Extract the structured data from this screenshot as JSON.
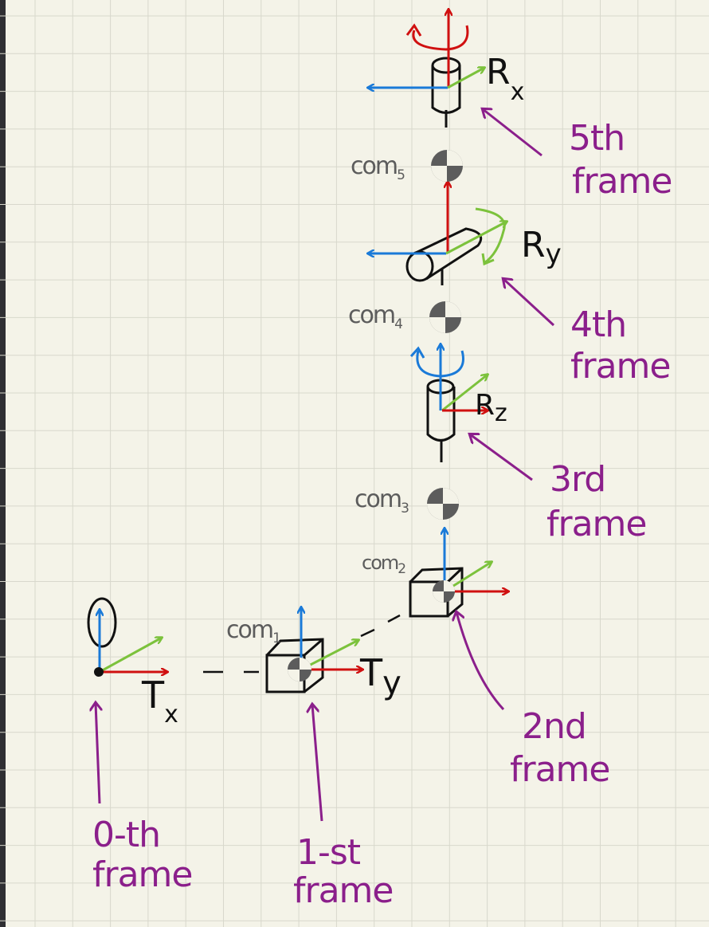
{
  "colors": {
    "background": "#f4f3e8",
    "grid": "#d8d8cc",
    "edge": "#2f2f33",
    "x_axis": "#d01010",
    "y_axis": "#7cc23c",
    "z_axis": "#1a7ad8",
    "label_purple": "#8b1f8b",
    "ink": "#111111",
    "com_gray": "#5c5c5c"
  },
  "operations": {
    "tx": {
      "main": "T",
      "sub": "x"
    },
    "ty": {
      "main": "T",
      "sub": "y"
    },
    "rz": {
      "main": "R",
      "sub": "z"
    },
    "ry": {
      "main": "R",
      "sub": "y"
    },
    "rx": {
      "main": "R",
      "sub": "x"
    }
  },
  "com_labels": [
    {
      "main": "com",
      "sub": "1"
    },
    {
      "main": "com",
      "sub": "2"
    },
    {
      "main": "com",
      "sub": "3"
    },
    {
      "main": "com",
      "sub": "4"
    },
    {
      "main": "com",
      "sub": "5"
    }
  ],
  "frame_labels": [
    {
      "line1": "0-th",
      "line2": "frame"
    },
    {
      "line1": "1-st",
      "line2": "frame"
    },
    {
      "line1": "2nd",
      "line2": "frame"
    },
    {
      "line1": "3rd",
      "line2": "frame"
    },
    {
      "line1": "4th",
      "line2": "frame"
    },
    {
      "line1": "5th",
      "line2": "frame"
    }
  ]
}
